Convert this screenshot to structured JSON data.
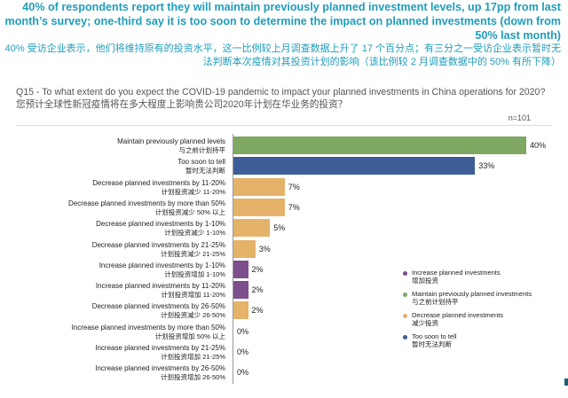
{
  "headline": {
    "en": "40% of respondents report they will maintain previously planned investment levels, up 17pp from last month’s survey; one-third say it is too soon to determine the impact on planned investments (down from 50% last month)",
    "cn": "40% 受访企业表示，他们将维持原有的投资水平，这一比例较上月调查数据上升了 17 个百分点；有三分之一受访企业表示暂时无法判断本次疫情对其投资计划的影响（该比例较 2 月调查数据中的 50% 有所下降）"
  },
  "question": {
    "en": "Q15 - To what extent do you expect the COVID-19 pandemic to impact your planned investments in China operations for 2020?",
    "cn": "您预计全球性新冠疫情将在多大程度上影响贵公司2020年计划在华业务的投资？"
  },
  "n_label": "n=101",
  "colors": {
    "maintain": "#7fa862",
    "too_soon": "#3e5d96",
    "decrease": "#e5b26a",
    "increase": "#7d4f8c",
    "headline": "#1f9dba"
  },
  "chart_data": {
    "type": "bar",
    "orientation": "horizontal",
    "title": "Q15 - To what extent do you expect the COVID-19 pandemic to impact your planned investments in China operations for 2020?",
    "unit": "%",
    "xlim": [
      0,
      40
    ],
    "categories": [
      {
        "en": "Maintain previously planned levels",
        "cn": "与之前计划持平",
        "value": 40,
        "label": "40%",
        "group": "maintain"
      },
      {
        "en": "Too soon to tell",
        "cn": "暂时无法判断",
        "value": 33,
        "label": "33%",
        "group": "too_soon"
      },
      {
        "en": "Decrease planned investments by 11-20%",
        "cn": "计划投资减少 11-20%",
        "value": 7,
        "label": "7%",
        "group": "decrease"
      },
      {
        "en": "Decrease planned investments by more than 50%",
        "cn": "计划投资减少 50% 以上",
        "value": 7,
        "label": "7%",
        "group": "decrease"
      },
      {
        "en": "Decrease planned investments by 1-10%",
        "cn": "计划投资减少 1-10%",
        "value": 5,
        "label": "5%",
        "group": "decrease"
      },
      {
        "en": "Decrease planned investments by 21-25%",
        "cn": "计划投资减少 21-25%",
        "value": 3,
        "label": "3%",
        "group": "decrease"
      },
      {
        "en": "Increase planned investments by 1-10%",
        "cn": "计划投资增加 1-10%",
        "value": 2,
        "label": "2%",
        "group": "increase"
      },
      {
        "en": "Increase planned investments by 11-20%",
        "cn": "计划投资增加 11-20%",
        "value": 2,
        "label": "2%",
        "group": "increase"
      },
      {
        "en": "Decrease planned investments by 26-50%",
        "cn": "计划投资减少 26-50%",
        "value": 2,
        "label": "2%",
        "group": "decrease"
      },
      {
        "en": "Increase planned investments by more than 50%",
        "cn": "计划投资增加 50% 以上",
        "value": 0,
        "label": "0%",
        "group": "increase"
      },
      {
        "en": "Increase planned investments by 21-25%",
        "cn": "计划投资增加 21-25%",
        "value": 0,
        "label": "0%",
        "group": "increase"
      },
      {
        "en": "Increase planned investments by 26-50%",
        "cn": "计划投资增加 26-50%",
        "value": 0,
        "label": "0%",
        "group": "increase"
      }
    ],
    "legend": [
      {
        "group": "increase",
        "en": "Increase planned investments",
        "cn": "增加投资"
      },
      {
        "group": "maintain",
        "en": "Maintain previously planned investments",
        "cn": "与之前计划持平"
      },
      {
        "group": "decrease",
        "en": "Decrease planned investments",
        "cn": "减少投资"
      },
      {
        "group": "too_soon",
        "en": "Too soon to tell",
        "cn": "暂时无法判断"
      }
    ]
  }
}
